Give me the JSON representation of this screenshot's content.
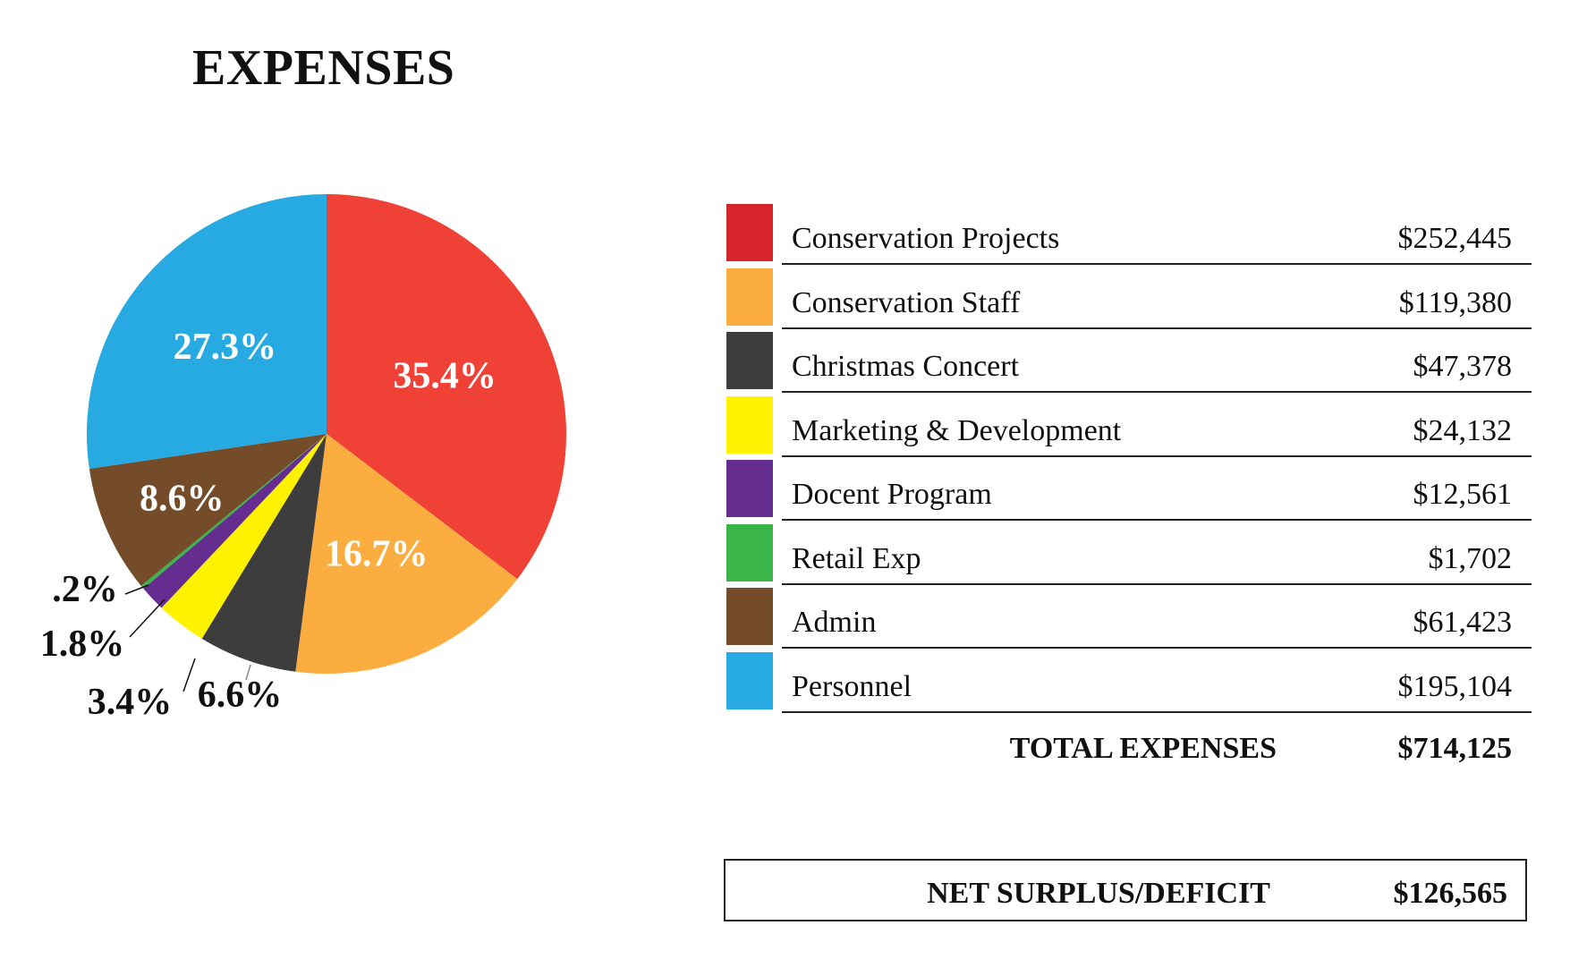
{
  "chart_data": {
    "type": "pie",
    "title": "EXPENSES",
    "categories": [
      "Conservation Projects",
      "Conservation Staff",
      "Christmas Concert",
      "Marketing & Development",
      "Docent Program",
      "Retail Exp",
      "Admin",
      "Personnel"
    ],
    "values": [
      252445,
      119380,
      47378,
      24132,
      12561,
      1702,
      61423,
      195104
    ],
    "value_labels": [
      "$252,445",
      "$119,380",
      "$47,378",
      "$24,132",
      "$12,561",
      "$1,702",
      "$61,423",
      "$195,104"
    ],
    "percent_labels": [
      "35.4%",
      "16.7%",
      "6.6%",
      "3.4%",
      "1.8%",
      ".2%",
      "8.6%",
      "27.3%"
    ],
    "colors": [
      "#ef4136",
      "#fbad3f",
      "#3d3d3d",
      "#fff200",
      "#662d91",
      "#39b54a",
      "#754c29",
      "#27aae1"
    ],
    "legend_colors": [
      "#d7232b",
      "#fbad3f",
      "#3d3d3d",
      "#fff200",
      "#662d91",
      "#39b54a",
      "#754c29",
      "#27aae1"
    ],
    "legend_position": "right",
    "total_label": "TOTAL EXPENSES",
    "total_value": "$714,125"
  },
  "net": {
    "label": "NET SURPLUS/DEFICIT",
    "value": "$126,565"
  }
}
